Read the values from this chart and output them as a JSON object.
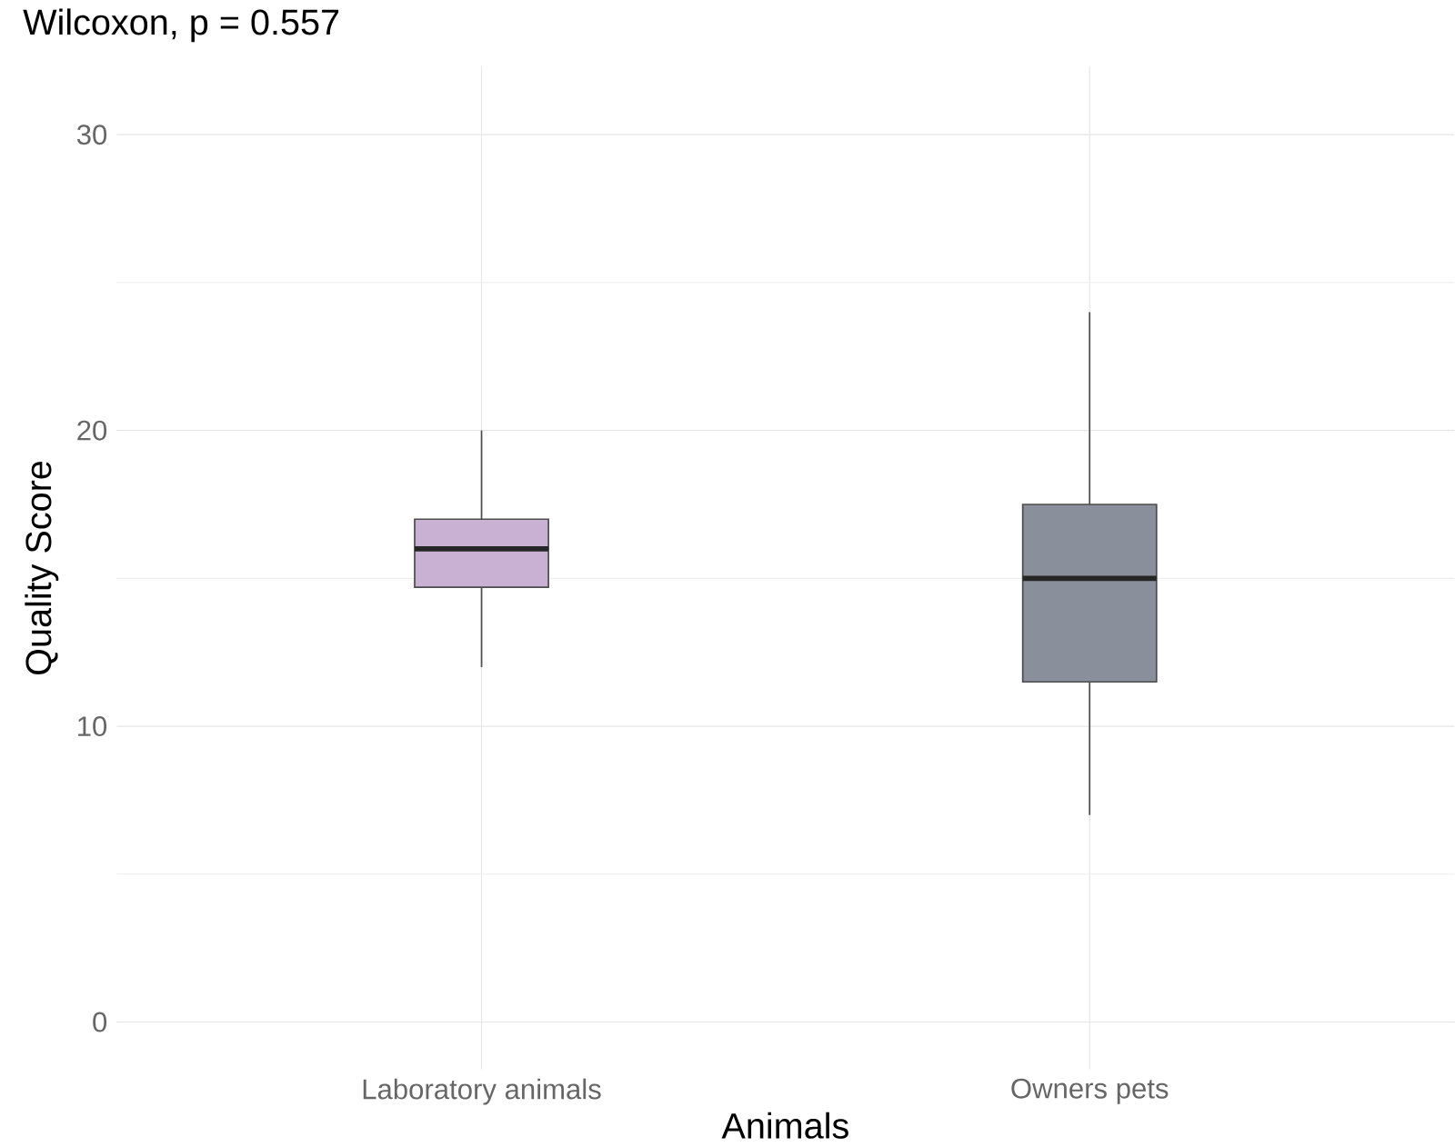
{
  "chart_data": {
    "type": "box",
    "title": "Wilcoxon, p = 0.557",
    "xlabel": "Animals",
    "ylabel": "Quality Score",
    "categories": [
      "Laboratory animals",
      "Owners pets"
    ],
    "boxes": [
      {
        "low": 12,
        "q1": 14.7,
        "median": 16,
        "q3": 17,
        "high": 20
      },
      {
        "low": 7,
        "q1": 11.5,
        "median": 15,
        "q3": 17.5,
        "high": 24
      }
    ],
    "colors": [
      "#c9b1d3",
      "#8a8f9c"
    ],
    "ylim": [
      -1.6,
      32.3
    ],
    "yticks": [
      0,
      10,
      20,
      30
    ],
    "grid": true
  }
}
